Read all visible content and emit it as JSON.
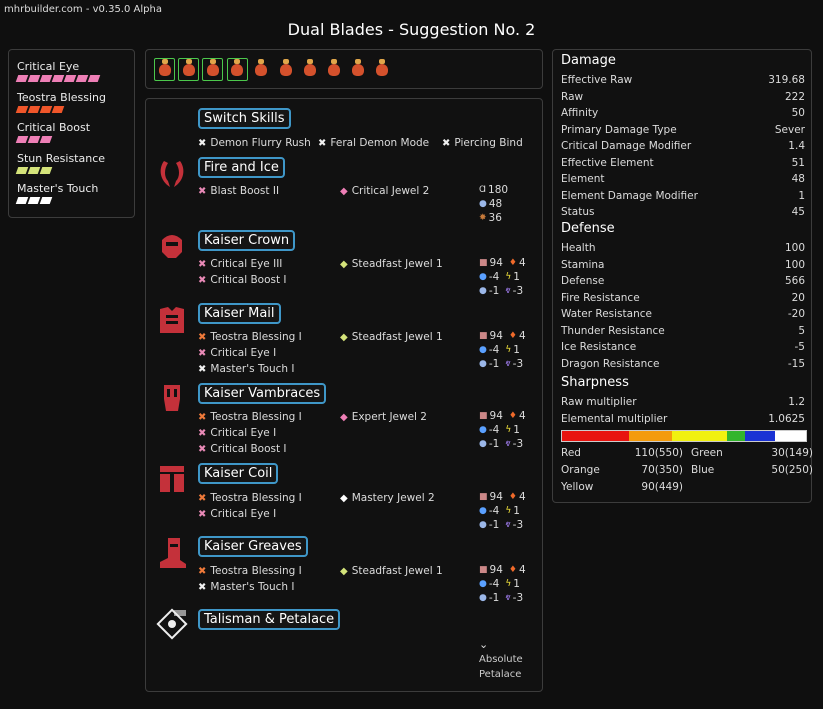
{
  "app": {
    "version": "mhrbuilder.com - v0.35.0 Alpha",
    "title": "Dual Blades - Suggestion No. 2"
  },
  "colors": {
    "accent_border": "#3f97c8",
    "pink": "#ee7fb6",
    "orange": "#f0562a",
    "lime": "#d4e37a",
    "white": "#ffffff",
    "selected_border": "#4cc84c"
  },
  "skills": [
    {
      "name": "Critical Eye",
      "level": 7,
      "color": "#ee7fb6"
    },
    {
      "name": "Teostra Blessing",
      "level": 4,
      "color": "#f0562a"
    },
    {
      "name": "Critical Boost",
      "level": 3,
      "color": "#ee7fb6"
    },
    {
      "name": "Stun Resistance",
      "level": 3,
      "color": "#d4e37a"
    },
    {
      "name": "Master's Touch",
      "level": 3,
      "color": "#ffffff"
    }
  ],
  "decorations": {
    "count": 10,
    "selected": [
      0,
      1,
      2,
      3
    ],
    "icon": "decoration-icon"
  },
  "equipment": {
    "switch_skills": {
      "header": "Switch Skills",
      "items": [
        "Demon Flurry Rush",
        "Feral Demon Mode",
        "Piercing Bind"
      ]
    },
    "weapon": {
      "header": "Fire and Ice",
      "icon": "dual-blades-icon",
      "skills": [
        {
          "name": "Blast Boost II",
          "mark": "pink"
        }
      ],
      "jewel": "Critical Jewel 2",
      "jewel_icon": "pink-diamond-icon",
      "stats": {
        "attack": "180",
        "affinity": "48",
        "element": "36"
      }
    },
    "head": {
      "header": "Kaiser Crown",
      "icon": "helmet-icon",
      "skills": [
        {
          "name": "Critical Eye III",
          "mark": "pink"
        },
        {
          "name": "Critical Boost I",
          "mark": "pink"
        }
      ],
      "jewel": "Steadfast Jewel 1",
      "jewel_icon": "lime-diamond-icon",
      "res": {
        "def": "94",
        "fire": "4",
        "water": "-4",
        "thunder": "1",
        "ice": "-1",
        "dragon": "-3"
      }
    },
    "chest": {
      "header": "Kaiser Mail",
      "icon": "chest-armor-icon",
      "skills": [
        {
          "name": "Teostra Blessing I",
          "mark": "orange"
        },
        {
          "name": "Critical Eye I",
          "mark": "pink"
        },
        {
          "name": "Master's Touch I",
          "mark": "white"
        }
      ],
      "jewel": "Steadfast Jewel 1",
      "jewel_icon": "lime-diamond-icon",
      "res": {
        "def": "94",
        "fire": "4",
        "water": "-4",
        "thunder": "1",
        "ice": "-1",
        "dragon": "-3"
      }
    },
    "arms": {
      "header": "Kaiser Vambraces",
      "icon": "gauntlet-icon",
      "skills": [
        {
          "name": "Teostra Blessing I",
          "mark": "orange"
        },
        {
          "name": "Critical Eye I",
          "mark": "pink"
        },
        {
          "name": "Critical Boost I",
          "mark": "pink"
        }
      ],
      "jewel": "Expert Jewel 2",
      "jewel_icon": "pink-diamond-icon",
      "res": {
        "def": "94",
        "fire": "4",
        "water": "-4",
        "thunder": "1",
        "ice": "-1",
        "dragon": "-3"
      }
    },
    "waist": {
      "header": "Kaiser Coil",
      "icon": "waist-armor-icon",
      "skills": [
        {
          "name": "Teostra Blessing I",
          "mark": "orange"
        },
        {
          "name": "Critical Eye I",
          "mark": "pink"
        }
      ],
      "jewel": "Mastery Jewel 2",
      "jewel_icon": "white-diamond-icon",
      "res": {
        "def": "94",
        "fire": "4",
        "water": "-4",
        "thunder": "1",
        "ice": "-1",
        "dragon": "-3"
      }
    },
    "legs": {
      "header": "Kaiser Greaves",
      "icon": "boots-icon",
      "skills": [
        {
          "name": "Teostra Blessing I",
          "mark": "orange"
        },
        {
          "name": "Master's Touch I",
          "mark": "white"
        }
      ],
      "jewel": "Steadfast Jewel 1",
      "jewel_icon": "lime-diamond-icon",
      "res": {
        "def": "94",
        "fire": "4",
        "water": "-4",
        "thunder": "1",
        "ice": "-1",
        "dragon": "-3"
      }
    },
    "talisman": {
      "header": "Talisman & Petalace",
      "icon": "talisman-icon",
      "petalace": "Absolute\nPetalace"
    }
  },
  "stats": {
    "damage": {
      "header": "Damage",
      "rows": [
        {
          "label": "Effective Raw",
          "value": "319.68"
        },
        {
          "label": "Raw",
          "value": "222"
        },
        {
          "label": "Affinity",
          "value": "50"
        },
        {
          "label": "Primary Damage Type",
          "value": "Sever"
        },
        {
          "label": "Critical Damage Modifier",
          "value": "1.4"
        },
        {
          "label": "Effective Element",
          "value": "51"
        },
        {
          "label": "Element",
          "value": "48"
        },
        {
          "label": "Element Damage Modifier",
          "value": "1"
        },
        {
          "label": "Status",
          "value": "45"
        }
      ]
    },
    "defense": {
      "header": "Defense",
      "rows": [
        {
          "label": "Health",
          "value": "100"
        },
        {
          "label": "Stamina",
          "value": "100"
        },
        {
          "label": "Defense",
          "value": "566"
        },
        {
          "label": "Fire Resistance",
          "value": "20"
        },
        {
          "label": "Water Resistance",
          "value": "-20"
        },
        {
          "label": "Thunder Resistance",
          "value": "5"
        },
        {
          "label": "Ice Resistance",
          "value": "-5"
        },
        {
          "label": "Dragon Resistance",
          "value": "-15"
        }
      ]
    },
    "sharpness": {
      "header": "Sharpness",
      "rows": [
        {
          "label": "Raw multiplier",
          "value": "1.2"
        },
        {
          "label": "Elemental multiplier",
          "value": "1.0625"
        }
      ],
      "bar": [
        {
          "color": "#e8140f",
          "value": 110
        },
        {
          "color": "#f49b0c",
          "value": 70
        },
        {
          "color": "#f1f110",
          "value": 90
        },
        {
          "color": "#32b52c",
          "value": 30
        },
        {
          "color": "#1a32d4",
          "value": 50
        },
        {
          "color": "#ffffff",
          "value": 50
        }
      ],
      "counts": {
        "red": {
          "label": "Red",
          "value": "110(550)"
        },
        "orange": {
          "label": "Orange",
          "value": "70(350)"
        },
        "yellow": {
          "label": "Yellow",
          "value": "90(449)"
        },
        "green": {
          "label": "Green",
          "value": "30(149)"
        },
        "blue": {
          "label": "Blue",
          "value": "50(250)"
        }
      }
    }
  }
}
